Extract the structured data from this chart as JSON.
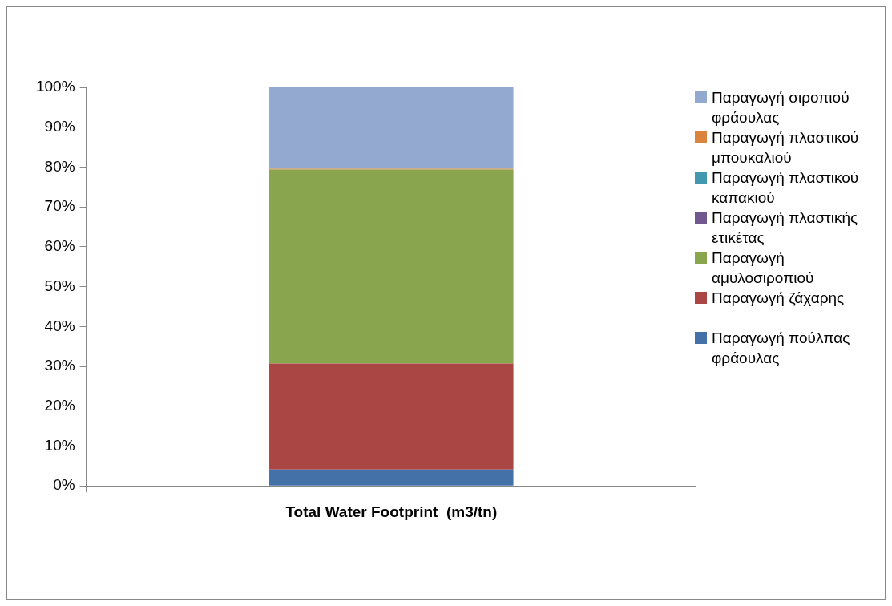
{
  "chart_data": {
    "type": "bar",
    "stacked": true,
    "categories": [
      "Total Water Footprint  (m3/tn)"
    ],
    "series": [
      {
        "name": "Παραγωγή πούλπας φράουλας",
        "color": "#4472a8",
        "values": [
          4.1
        ]
      },
      {
        "name": "Παραγωγή ζάχαρης",
        "color": "#aa4744",
        "values": [
          26.6
        ]
      },
      {
        "name": "Παραγωγή αμυλοσιροπιού",
        "color": "#89a54e",
        "values": [
          48.7
        ]
      },
      {
        "name": "Παραγωγή πλαστικής ετικέτας",
        "color": "#71588f",
        "values": [
          0
        ]
      },
      {
        "name": "Παραγωγή πλαστικού καπακιού",
        "color": "#4198af",
        "values": [
          0
        ]
      },
      {
        "name": "Παραγωγή πλαστικού μπουκαλιού",
        "color": "#db843d",
        "values": [
          0.2
        ]
      },
      {
        "name": "Παραγωγή σιροπιού φράουλας",
        "color": "#93a9cf",
        "values": [
          20.4
        ]
      }
    ],
    "ylim": [
      0,
      100
    ],
    "yticks": [
      {
        "value": 0,
        "label": "0%"
      },
      {
        "value": 10,
        "label": "10%"
      },
      {
        "value": 20,
        "label": "20%"
      },
      {
        "value": 30,
        "label": "30%"
      },
      {
        "value": 40,
        "label": "40%"
      },
      {
        "value": 50,
        "label": "50%"
      },
      {
        "value": 60,
        "label": "60%"
      },
      {
        "value": 70,
        "label": "70%"
      },
      {
        "value": 80,
        "label": "80%"
      },
      {
        "value": 90,
        "label": "90%"
      },
      {
        "value": 100,
        "label": "100%"
      }
    ],
    "grid": false,
    "legend": "right"
  }
}
